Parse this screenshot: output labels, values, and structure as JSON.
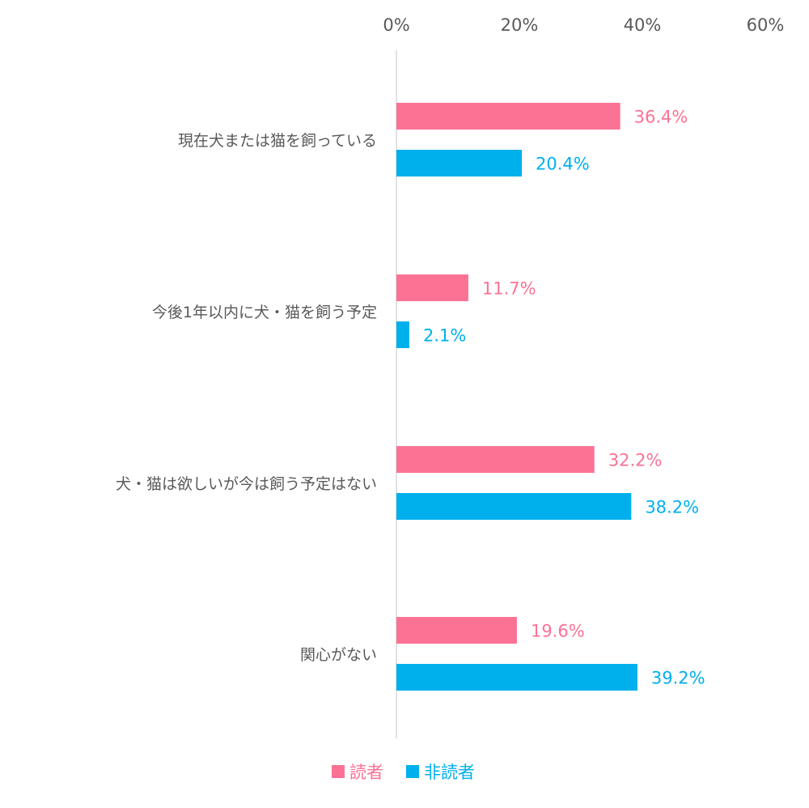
{
  "chart_data": {
    "type": "bar",
    "orientation": "horizontal",
    "categories": [
      "現在犬または猫を飼っている",
      "今後1年以内に犬・猫を飼う予定",
      "犬・猫は欲しいが今は飼う予定はない",
      "関心がない"
    ],
    "series": [
      {
        "name": "読者",
        "color": "#fc7294",
        "values": [
          36.4,
          11.7,
          32.2,
          19.6
        ],
        "labels": [
          "36.4%",
          "11.7%",
          "32.2%",
          "19.6%"
        ]
      },
      {
        "name": "非読者",
        "color": "#00b0ec",
        "values": [
          20.4,
          2.1,
          38.2,
          39.2
        ],
        "labels": [
          "20.4%",
          "2.1%",
          "38.2%",
          "39.2%"
        ]
      }
    ],
    "x_ticks": [
      "0%",
      "20%",
      "40%",
      "60%"
    ],
    "xlim": [
      0,
      60
    ],
    "axis_position": "top",
    "grid": false,
    "legend_position": "bottom-center",
    "label_color": "#595959",
    "axis_line_color": "#d9d9d9"
  }
}
